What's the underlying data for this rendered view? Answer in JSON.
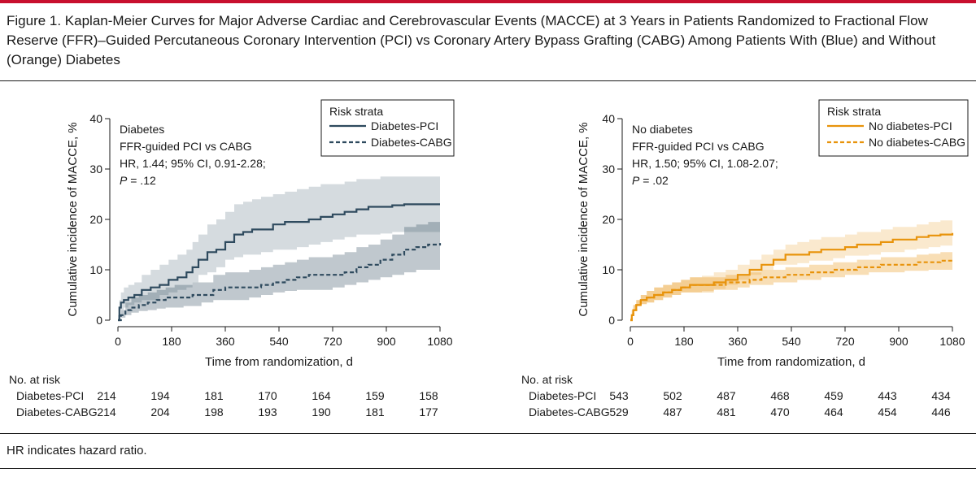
{
  "figure": {
    "title": "Figure 1. Kaplan-Meier Curves for Major Adverse Cardiac and Cerebrovascular Events (MACCE) at 3 Years in Patients Randomized to Fractional Flow Reserve (FFR)–Guided Percutaneous Coronary Intervention (PCI) vs Coronary Artery Bypass Grafting (CABG) Among Patients With (Blue) and Without (Orange) Diabetes",
    "footnote": "HR indicates hazard ratio.",
    "accent": "#c8102e"
  },
  "chart_data": [
    {
      "type": "line",
      "title": "Diabetes",
      "annotation": [
        "Diabetes",
        "FFR-guided PCI vs CABG",
        "HR, 1.44; 95% CI, 0.91-2.28;"
      ],
      "p_label": "P",
      "p_value": " = .12",
      "xlabel": "Time from randomization, d",
      "ylabel": "Cumulative incidence of MACCE, %",
      "xlim": [
        0,
        1080
      ],
      "ylim": [
        0,
        40
      ],
      "xticks": [
        0,
        180,
        360,
        540,
        720,
        900,
        1080
      ],
      "yticks": [
        0,
        10,
        20,
        30,
        40
      ],
      "legend_title": "Risk strata",
      "legend_position": "top-right",
      "color": "#2e4a5e",
      "series": [
        {
          "name": "Diabetes-PCI",
          "style": "solid",
          "x": [
            0,
            5,
            10,
            20,
            35,
            55,
            80,
            110,
            140,
            170,
            200,
            230,
            250,
            270,
            300,
            330,
            360,
            390,
            420,
            450,
            480,
            520,
            560,
            600,
            640,
            680,
            720,
            760,
            800,
            840,
            880,
            920,
            960,
            1000,
            1080
          ],
          "y": [
            0,
            2.5,
            3.5,
            4,
            4.5,
            5,
            6,
            6.5,
            7,
            8,
            8.5,
            9.5,
            10.5,
            12,
            13.5,
            14,
            15.5,
            17,
            17.5,
            18,
            18,
            19,
            19.5,
            19.5,
            20,
            20.5,
            21,
            21.5,
            22,
            22.5,
            22.5,
            22.8,
            23,
            23,
            23
          ],
          "ci_upper": [
            0,
            4,
            5.5,
            6.5,
            7,
            7.5,
            9,
            10,
            11,
            12,
            13,
            14,
            15.5,
            17,
            19,
            20,
            21.5,
            23,
            23.5,
            24,
            24.5,
            25,
            25.5,
            26,
            26.5,
            27,
            27,
            27.5,
            28,
            28,
            28.5,
            28.5,
            28.5,
            28.5,
            28.5
          ],
          "ci_lower": [
            0,
            1,
            2,
            2,
            2.5,
            3,
            3.5,
            4,
            4,
            5,
            5.5,
            6,
            6.5,
            7.5,
            9,
            9.5,
            10.5,
            12,
            12.5,
            13,
            13,
            13.5,
            14,
            14,
            14.5,
            15,
            15.5,
            16,
            16.5,
            17,
            17,
            17.2,
            17.5,
            17.5,
            17.5
          ]
        },
        {
          "name": "Diabetes-CABG",
          "style": "dashed",
          "x": [
            0,
            10,
            25,
            45,
            70,
            100,
            130,
            160,
            190,
            220,
            250,
            280,
            320,
            360,
            400,
            440,
            480,
            520,
            560,
            600,
            640,
            680,
            720,
            760,
            800,
            840,
            880,
            920,
            960,
            1000,
            1040,
            1080
          ],
          "y": [
            0,
            1,
            2,
            2.5,
            3,
            3.5,
            4,
            4.5,
            4.5,
            4.5,
            5,
            5,
            6,
            6.5,
            6.5,
            6.5,
            7,
            7.5,
            8,
            8.5,
            9,
            9,
            9,
            9.5,
            10.5,
            11,
            12,
            13,
            14,
            14.5,
            15,
            15.3
          ],
          "ci_upper": [
            0,
            2,
            3.5,
            4.5,
            5,
            5.5,
            6,
            6.5,
            7,
            7,
            7.5,
            7.5,
            9,
            9.5,
            9.5,
            10,
            10.5,
            11,
            11.5,
            12,
            12.5,
            12.5,
            13,
            13.5,
            14.5,
            15,
            16,
            17,
            18.5,
            19,
            19.5,
            20
          ],
          "ci_lower": [
            0,
            0,
            0.5,
            1,
            1.5,
            1.8,
            2,
            2.3,
            2.5,
            2.5,
            2.8,
            2.8,
            3.5,
            4,
            4,
            4,
            4.5,
            5,
            5.5,
            5.8,
            6,
            6,
            6,
            6.5,
            7,
            7.5,
            8,
            8.5,
            9,
            9.5,
            10,
            10
          ]
        }
      ],
      "at_risk": {
        "header": "No. at risk",
        "rows": [
          {
            "label": "Diabetes-PCI",
            "values": [
              "214",
              "194",
              "181",
              "170",
              "164",
              "159",
              "158"
            ]
          },
          {
            "label": "Diabetes-CABG",
            "values": [
              "214",
              "204",
              "198",
              "193",
              "190",
              "181",
              "177"
            ]
          }
        ]
      }
    },
    {
      "type": "line",
      "title": "No diabetes",
      "annotation": [
        "No diabetes",
        "FFR-guided PCI vs CABG",
        "HR, 1.50; 95% CI, 1.08-2.07;"
      ],
      "p_label": "P",
      "p_value": " = .02",
      "xlabel": "Time from randomization, d",
      "ylabel": "Cumulative incidence of MACCE, %",
      "xlim": [
        0,
        1080
      ],
      "ylim": [
        0,
        40
      ],
      "xticks": [
        0,
        180,
        360,
        540,
        720,
        900,
        1080
      ],
      "yticks": [
        0,
        10,
        20,
        30,
        40
      ],
      "legend_title": "Risk strata",
      "legend_position": "top-right",
      "color": "#e8930b",
      "series": [
        {
          "name": "No diabetes-PCI",
          "style": "solid",
          "x": [
            0,
            5,
            10,
            20,
            35,
            55,
            80,
            110,
            140,
            170,
            200,
            240,
            280,
            320,
            360,
            400,
            440,
            480,
            520,
            560,
            600,
            640,
            680,
            720,
            760,
            800,
            840,
            880,
            920,
            960,
            1000,
            1040,
            1080
          ],
          "y": [
            0,
            1,
            2,
            3,
            4,
            4.5,
            5,
            5.5,
            6,
            6.5,
            7,
            7,
            7.5,
            8,
            9,
            10,
            11,
            12,
            13,
            13,
            13.5,
            14,
            14,
            14.5,
            15,
            15,
            15.5,
            16,
            16,
            16.5,
            16.8,
            17,
            17.3
          ],
          "ci_upper": [
            0,
            2,
            3,
            4,
            5,
            5.8,
            6.5,
            7,
            7.5,
            8,
            8.5,
            8.8,
            9.5,
            10,
            11,
            12,
            13,
            14,
            15,
            15.5,
            16,
            16.5,
            16.5,
            17,
            17.5,
            17.5,
            18,
            18.5,
            18.5,
            19,
            19.5,
            19.8,
            20
          ],
          "ci_lower": [
            0,
            0.3,
            1,
            1.8,
            2.8,
            3.2,
            3.5,
            4,
            4.5,
            5,
            5.5,
            5.5,
            5.8,
            6.2,
            7,
            8,
            9,
            10,
            11,
            11,
            11.3,
            11.8,
            11.8,
            12.3,
            12.8,
            12.8,
            13,
            13.5,
            13.5,
            14,
            14.2,
            14.5,
            14.8
          ]
        },
        {
          "name": "No diabetes-CABG",
          "style": "dashed",
          "x": [
            0,
            5,
            10,
            20,
            35,
            55,
            80,
            110,
            140,
            170,
            200,
            240,
            280,
            320,
            360,
            400,
            440,
            480,
            520,
            560,
            600,
            640,
            680,
            720,
            760,
            800,
            840,
            880,
            920,
            960,
            1000,
            1040,
            1080
          ],
          "y": [
            0,
            1,
            2,
            3,
            4,
            4.5,
            5,
            5.5,
            6,
            6.5,
            7,
            7,
            7,
            7.5,
            7.5,
            8,
            8.5,
            8.5,
            9,
            9,
            9.5,
            9.5,
            10,
            10,
            10.5,
            10.5,
            11,
            11,
            11,
            11.5,
            11.5,
            11.8,
            12
          ],
          "ci_upper": [
            0,
            2,
            3,
            4,
            5,
            5.8,
            6.5,
            7,
            7.5,
            8,
            8.5,
            8.5,
            8.5,
            9,
            9,
            9.5,
            10,
            10,
            10.5,
            10.5,
            11,
            11,
            11.5,
            11.5,
            12,
            12,
            12.5,
            12.5,
            12.5,
            13,
            13.2,
            13.5,
            14
          ],
          "ci_lower": [
            0,
            0.3,
            1,
            1.8,
            2.8,
            3.2,
            3.5,
            4,
            4.5,
            5,
            5.5,
            5.5,
            5.5,
            6,
            6,
            6.5,
            7,
            7,
            7.5,
            7.5,
            8,
            8,
            8.5,
            8.5,
            9,
            9,
            9.5,
            9.5,
            9.5,
            9.8,
            9.8,
            10,
            10
          ]
        }
      ],
      "at_risk": {
        "header": "No. at risk",
        "rows": [
          {
            "label": "Diabetes-PCI",
            "values": [
              "543",
              "502",
              "487",
              "468",
              "459",
              "443",
              "434"
            ]
          },
          {
            "label": "Diabetes-CABG",
            "values": [
              "529",
              "487",
              "481",
              "470",
              "464",
              "454",
              "446"
            ]
          }
        ]
      }
    }
  ]
}
